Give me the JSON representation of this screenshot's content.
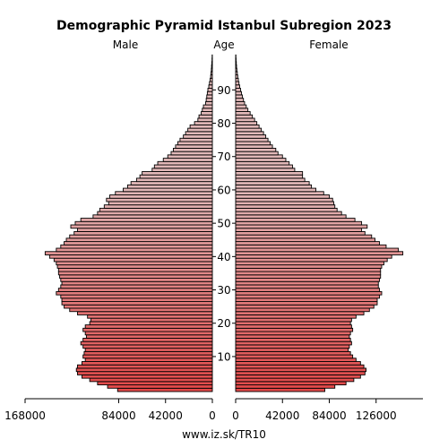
{
  "chart_data": {
    "type": "bar",
    "subtype": "population-pyramid",
    "title": "Demographic Pyramid Istanbul Subregion 2023",
    "left_header": "Male",
    "center_header": "Age",
    "right_header": "Female",
    "footer": "www.iz.sk/TR10",
    "age_ticks": [
      "10",
      "20",
      "30",
      "40",
      "50",
      "60",
      "70",
      "80",
      "90"
    ],
    "x_ticks_male": [
      "168000",
      "84000",
      "42000",
      "0"
    ],
    "x_ticks_female": [
      "0",
      "42000",
      "84000",
      "126000"
    ],
    "xlim": [
      0,
      168000
    ],
    "ages": [
      0,
      1,
      2,
      3,
      4,
      5,
      6,
      7,
      8,
      9,
      10,
      11,
      12,
      13,
      14,
      15,
      16,
      17,
      18,
      19,
      20,
      21,
      22,
      23,
      24,
      25,
      26,
      27,
      28,
      29,
      30,
      31,
      32,
      33,
      34,
      35,
      36,
      37,
      38,
      39,
      40,
      41,
      42,
      43,
      44,
      45,
      46,
      47,
      48,
      49,
      50,
      51,
      52,
      53,
      54,
      55,
      56,
      57,
      58,
      59,
      60,
      61,
      62,
      63,
      64,
      65,
      66,
      67,
      68,
      69,
      70,
      71,
      72,
      73,
      74,
      75,
      76,
      77,
      78,
      79,
      80,
      81,
      82,
      83,
      84,
      85,
      86,
      87,
      88,
      89,
      90,
      91,
      92,
      93,
      94,
      95,
      96,
      97,
      98,
      99,
      100
    ],
    "series": [
      {
        "name": "Male",
        "values": [
          85000,
          94000,
          103000,
          110000,
          117000,
          121000,
          122000,
          121000,
          117000,
          114000,
          116000,
          115000,
          114000,
          116000,
          118000,
          116000,
          113000,
          114000,
          116000,
          114000,
          110000,
          109000,
          112000,
          121000,
          128000,
          133000,
          135000,
          135000,
          136000,
          140000,
          138000,
          136000,
          135000,
          136000,
          137000,
          138000,
          138000,
          139000,
          140000,
          142000,
          146000,
          150000,
          140000,
          136000,
          133000,
          131000,
          128000,
          124000,
          121000,
          127000,
          123000,
          118000,
          107000,
          103000,
          101000,
          97000,
          93000,
          95000,
          92000,
          87000,
          80000,
          76000,
          73000,
          68000,
          65000,
          63000,
          54000,
          52000,
          49000,
          44000,
          40000,
          37000,
          35000,
          33000,
          31000,
          29000,
          26000,
          24000,
          22000,
          20000,
          16000,
          13000,
          12000,
          10000,
          9000,
          8000,
          6000,
          5500,
          5000,
          4500,
          4000,
          3200,
          2600,
          2000,
          1500,
          1200,
          900,
          700,
          500,
          300,
          200
        ]
      },
      {
        "name": "Female",
        "values": [
          80000,
          89000,
          99000,
          106000,
          112000,
          116000,
          117000,
          115000,
          112000,
          108000,
          105000,
          103000,
          101000,
          102000,
          104000,
          103000,
          102000,
          103000,
          105000,
          104000,
          103000,
          104000,
          108000,
          115000,
          120000,
          124000,
          127000,
          127000,
          129000,
          131000,
          129000,
          128000,
          128000,
          129000,
          130000,
          130000,
          130000,
          131000,
          133000,
          136000,
          140000,
          150000,
          146000,
          135000,
          129000,
          125000,
          122000,
          116000,
          113000,
          118000,
          113000,
          107000,
          99000,
          95000,
          91000,
          89000,
          88000,
          87000,
          84000,
          79000,
          72000,
          68000,
          66000,
          62000,
          60000,
          60000,
          53000,
          51000,
          48000,
          45000,
          42000,
          38000,
          36000,
          33000,
          31000,
          29000,
          27000,
          25000,
          23000,
          21000,
          19000,
          17000,
          15000,
          13000,
          11000,
          9500,
          8000,
          7000,
          6000,
          5200,
          4400,
          3600,
          3000,
          2400,
          1900,
          1500,
          1100,
          800,
          600,
          400,
          250
        ]
      }
    ],
    "colors": {
      "bar_old": "#e2b8b8",
      "bar_young": "#e24848",
      "bar_stroke": "#000000",
      "axis": "#000000"
    }
  }
}
